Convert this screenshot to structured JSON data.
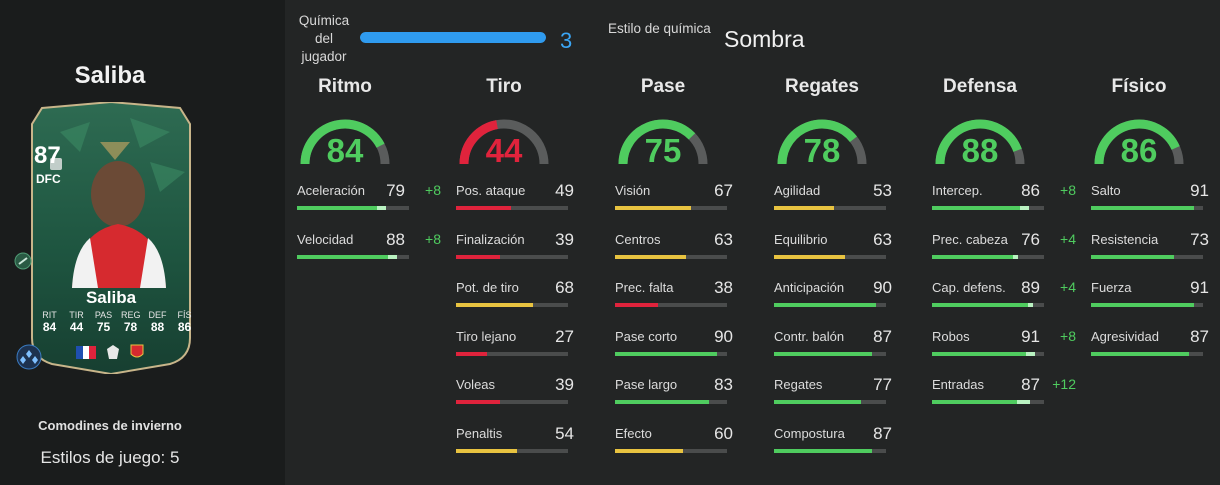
{
  "player": {
    "name": "Saliba"
  },
  "card": {
    "rating": "87",
    "position": "DFC",
    "name": "Saliba",
    "stats": [
      {
        "label": "RIT",
        "value": "84"
      },
      {
        "label": "TIR",
        "value": "44"
      },
      {
        "label": "PAS",
        "value": "75"
      },
      {
        "label": "REG",
        "value": "78"
      },
      {
        "label": "DEF",
        "value": "88"
      },
      {
        "label": "FÍS",
        "value": "86"
      }
    ],
    "flags": [
      "france-flag",
      "premier-league-logo",
      "arsenal-crest"
    ]
  },
  "promo": "Comodines de invierno",
  "playstyles": "Estilos de juego: 5",
  "chemistry": {
    "label": "Química del jugador",
    "value": "3",
    "fill_fraction": 1.0,
    "color": "#2f9bef"
  },
  "chem_style": {
    "label": "Estilo de química",
    "value": "Sombra"
  },
  "colors": {
    "green": "#4fcc5f",
    "red": "#e0233c",
    "yellow": "#e8c340",
    "grey": "#4a4c4c"
  },
  "categories": [
    {
      "title": "Ritmo",
      "value": "84",
      "color": "#4fcc5f",
      "stats": [
        {
          "label": "Aceleración",
          "value": "79",
          "bonus": "+8",
          "color": "#4fcc5f"
        },
        {
          "label": "Velocidad",
          "value": "88",
          "bonus": "+8",
          "color": "#4fcc5f"
        }
      ]
    },
    {
      "title": "Tiro",
      "value": "44",
      "color": "#e0233c",
      "stats": [
        {
          "label": "Pos. ataque",
          "value": "49",
          "bonus": "",
          "color": "#e0233c"
        },
        {
          "label": "Finalización",
          "value": "39",
          "bonus": "",
          "color": "#e0233c"
        },
        {
          "label": "Pot. de tiro",
          "value": "68",
          "bonus": "",
          "color": "#e8c340"
        },
        {
          "label": "Tiro lejano",
          "value": "27",
          "bonus": "",
          "color": "#e0233c"
        },
        {
          "label": "Voleas",
          "value": "39",
          "bonus": "",
          "color": "#e0233c"
        },
        {
          "label": "Penaltis",
          "value": "54",
          "bonus": "",
          "color": "#e8c340"
        }
      ]
    },
    {
      "title": "Pase",
      "value": "75",
      "color": "#4fcc5f",
      "stats": [
        {
          "label": "Visión",
          "value": "67",
          "bonus": "",
          "color": "#e8c340"
        },
        {
          "label": "Centros",
          "value": "63",
          "bonus": "",
          "color": "#e8c340"
        },
        {
          "label": "Prec. falta",
          "value": "38",
          "bonus": "",
          "color": "#e0233c"
        },
        {
          "label": "Pase corto",
          "value": "90",
          "bonus": "",
          "color": "#4fcc5f"
        },
        {
          "label": "Pase largo",
          "value": "83",
          "bonus": "",
          "color": "#4fcc5f"
        },
        {
          "label": "Efecto",
          "value": "60",
          "bonus": "",
          "color": "#e8c340"
        }
      ]
    },
    {
      "title": "Regates",
      "value": "78",
      "color": "#4fcc5f",
      "stats": [
        {
          "label": "Agilidad",
          "value": "53",
          "bonus": "",
          "color": "#e8c340"
        },
        {
          "label": "Equilibrio",
          "value": "63",
          "bonus": "",
          "color": "#e8c340"
        },
        {
          "label": "Anticipación",
          "value": "90",
          "bonus": "",
          "color": "#4fcc5f"
        },
        {
          "label": "Contr. balón",
          "value": "87",
          "bonus": "",
          "color": "#4fcc5f"
        },
        {
          "label": "Regates",
          "value": "77",
          "bonus": "",
          "color": "#4fcc5f"
        },
        {
          "label": "Compostura",
          "value": "87",
          "bonus": "",
          "color": "#4fcc5f"
        }
      ]
    },
    {
      "title": "Defensa",
      "value": "88",
      "color": "#4fcc5f",
      "stats": [
        {
          "label": "Intercep.",
          "value": "86",
          "bonus": "+8",
          "color": "#4fcc5f"
        },
        {
          "label": "Prec. cabeza",
          "value": "76",
          "bonus": "+4",
          "color": "#4fcc5f"
        },
        {
          "label": "Cap. defens.",
          "value": "89",
          "bonus": "+4",
          "color": "#4fcc5f"
        },
        {
          "label": "Robos",
          "value": "91",
          "bonus": "+8",
          "color": "#4fcc5f"
        },
        {
          "label": "Entradas",
          "value": "87",
          "bonus": "+12",
          "color": "#4fcc5f"
        }
      ]
    },
    {
      "title": "Físico",
      "value": "86",
      "color": "#4fcc5f",
      "stats": [
        {
          "label": "Salto",
          "value": "91",
          "bonus": "",
          "color": "#4fcc5f"
        },
        {
          "label": "Resistencia",
          "value": "73",
          "bonus": "",
          "color": "#4fcc5f"
        },
        {
          "label": "Fuerza",
          "value": "91",
          "bonus": "",
          "color": "#4fcc5f"
        },
        {
          "label": "Agresividad",
          "value": "87",
          "bonus": "",
          "color": "#4fcc5f"
        }
      ]
    }
  ]
}
